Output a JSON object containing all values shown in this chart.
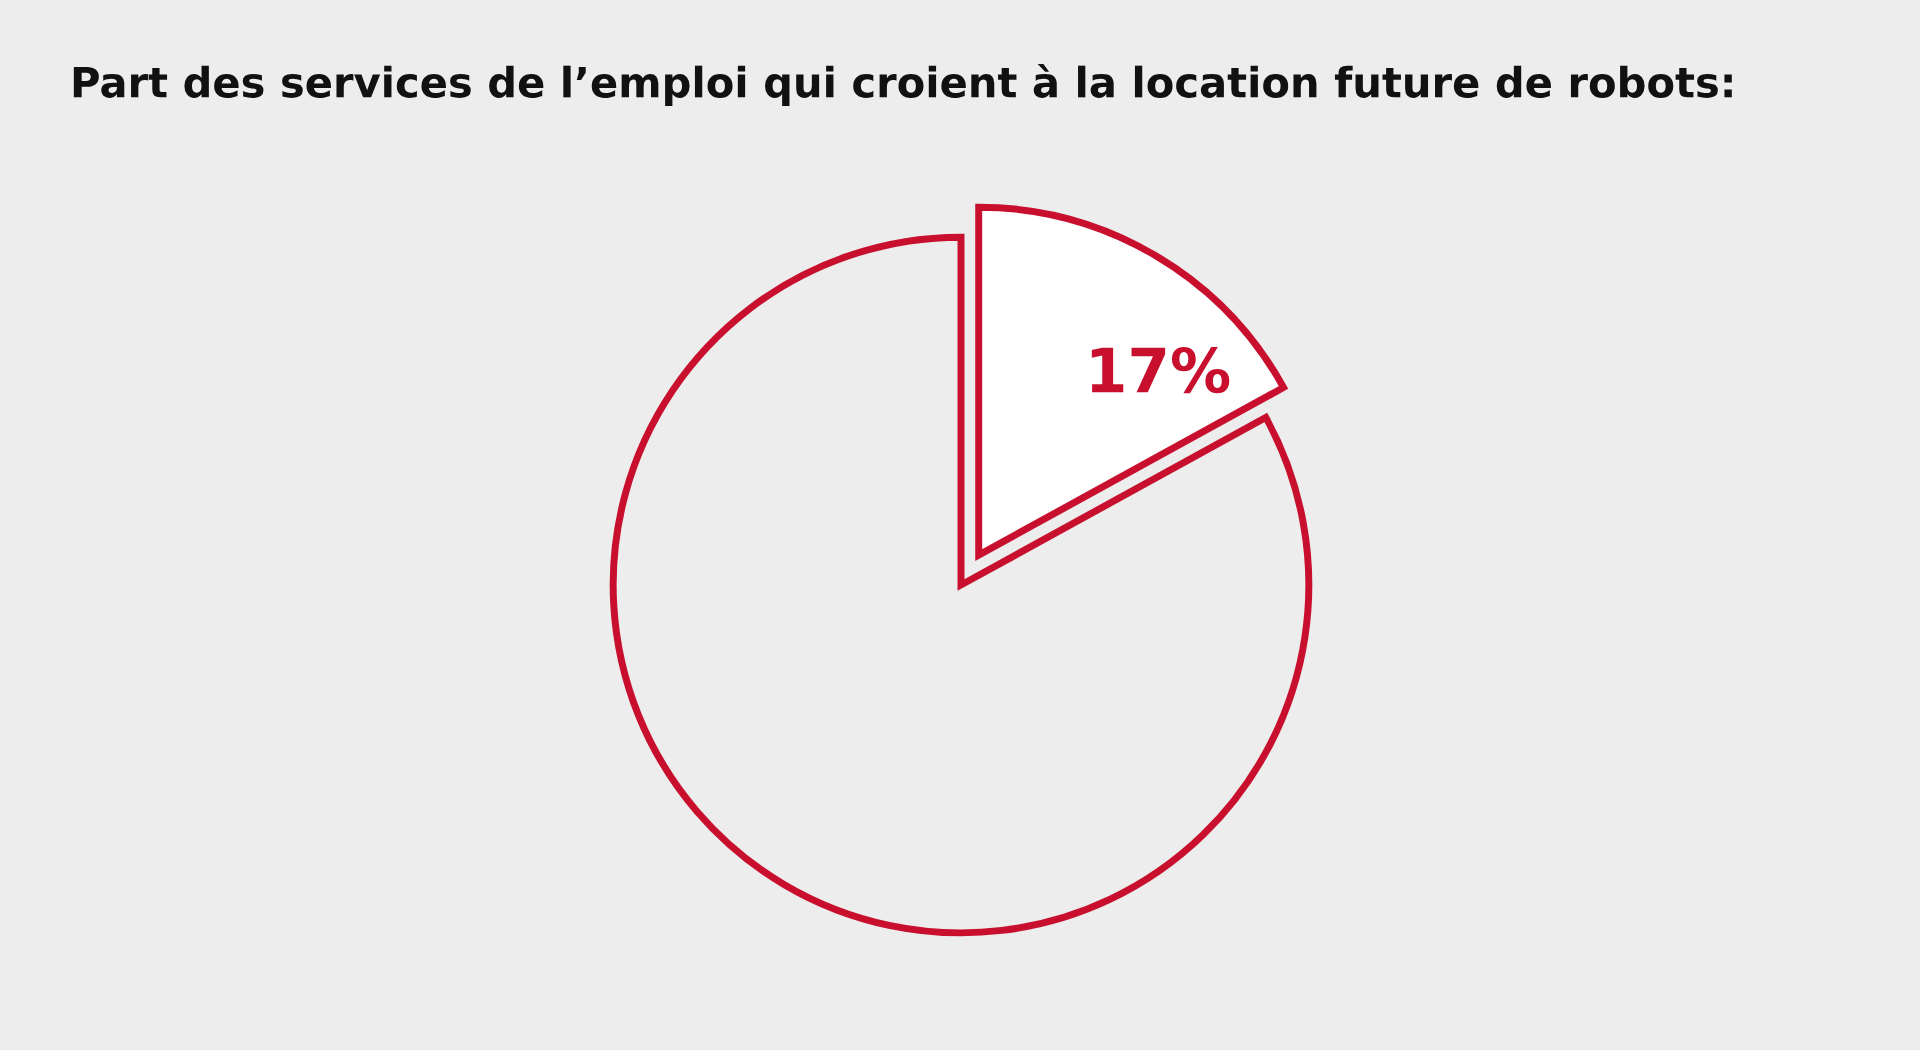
{
  "chart_data": {
    "type": "pie",
    "title": "Part des services de l’emploi qui croient à la location future de robots:",
    "categories": [
      null,
      null
    ],
    "values": [
      17,
      83
    ],
    "colors": [
      "#ffffff",
      "#ecedec"
    ],
    "value_labels": [
      "17%",
      null
    ]
  }
}
